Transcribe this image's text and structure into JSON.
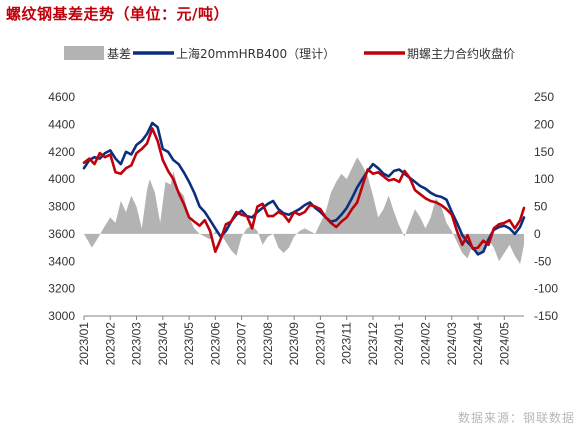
{
  "title": "螺纹钢基差走势（单位：元/吨）",
  "source": "数据来源：钢联数据",
  "chart_data": {
    "type": "line",
    "title": "螺纹钢基差走势（单位：元/吨）",
    "legend_position": "top",
    "grid": false,
    "left_axis": {
      "ylim": [
        3000,
        4600
      ],
      "ticks": [
        3000,
        3200,
        3400,
        3600,
        3800,
        4000,
        4200,
        4400,
        4600
      ]
    },
    "right_axis": {
      "ylim": [
        -150,
        250
      ],
      "ticks": [
        -150,
        -100,
        -50,
        0,
        50,
        100,
        150,
        200,
        250
      ]
    },
    "x_tick_labels": [
      "2023/01",
      "2023/02",
      "2023/03",
      "2023/04",
      "2023/05",
      "2023/06",
      "2023/07",
      "2023/08",
      "2023/09",
      "2023/10",
      "2023/11",
      "2023/12",
      "2024/01",
      "2024/02",
      "2024/03",
      "2024/04",
      "2024/05"
    ],
    "x_range_months": [
      0,
      16.75
    ],
    "series": [
      {
        "name": "基差",
        "axis": "right",
        "style": "area",
        "color": "#b3b3b3",
        "points": [
          [
            0.0,
            0
          ],
          [
            0.3,
            -25
          ],
          [
            0.5,
            -10
          ],
          [
            0.8,
            15
          ],
          [
            1.0,
            30
          ],
          [
            1.2,
            20
          ],
          [
            1.4,
            60
          ],
          [
            1.6,
            40
          ],
          [
            1.8,
            70
          ],
          [
            2.0,
            50
          ],
          [
            2.2,
            10
          ],
          [
            2.4,
            80
          ],
          [
            2.5,
            100
          ],
          [
            2.7,
            75
          ],
          [
            2.9,
            20
          ],
          [
            3.1,
            95
          ],
          [
            3.3,
            90
          ],
          [
            3.4,
            115
          ],
          [
            3.6,
            80
          ],
          [
            3.8,
            70
          ],
          [
            4.0,
            30
          ],
          [
            4.2,
            10
          ],
          [
            4.4,
            0
          ],
          [
            4.6,
            -5
          ],
          [
            4.8,
            -10
          ],
          [
            5.0,
            5
          ],
          [
            5.2,
            0
          ],
          [
            5.4,
            -15
          ],
          [
            5.6,
            -30
          ],
          [
            5.8,
            -40
          ],
          [
            6.0,
            -5
          ],
          [
            6.2,
            10
          ],
          [
            6.4,
            15
          ],
          [
            6.6,
            5
          ],
          [
            6.8,
            -20
          ],
          [
            7.0,
            -5
          ],
          [
            7.2,
            0
          ],
          [
            7.4,
            -25
          ],
          [
            7.6,
            -35
          ],
          [
            7.8,
            -25
          ],
          [
            8.0,
            -5
          ],
          [
            8.2,
            5
          ],
          [
            8.4,
            10
          ],
          [
            8.6,
            5
          ],
          [
            8.8,
            0
          ],
          [
            9.0,
            20
          ],
          [
            9.2,
            40
          ],
          [
            9.4,
            75
          ],
          [
            9.6,
            95
          ],
          [
            9.8,
            110
          ],
          [
            10.0,
            100
          ],
          [
            10.2,
            120
          ],
          [
            10.4,
            140
          ],
          [
            10.6,
            125
          ],
          [
            10.8,
            105
          ],
          [
            11.0,
            70
          ],
          [
            11.2,
            30
          ],
          [
            11.4,
            45
          ],
          [
            11.6,
            70
          ],
          [
            11.8,
            40
          ],
          [
            12.0,
            15
          ],
          [
            12.2,
            -5
          ],
          [
            12.4,
            20
          ],
          [
            12.6,
            45
          ],
          [
            12.8,
            30
          ],
          [
            13.0,
            10
          ],
          [
            13.2,
            30
          ],
          [
            13.4,
            65
          ],
          [
            13.6,
            50
          ],
          [
            13.8,
            20
          ],
          [
            14.0,
            5
          ],
          [
            14.2,
            -15
          ],
          [
            14.4,
            -35
          ],
          [
            14.6,
            -45
          ],
          [
            14.8,
            -20
          ],
          [
            15.0,
            -40
          ],
          [
            15.2,
            -30
          ],
          [
            15.4,
            -10
          ],
          [
            15.6,
            -25
          ],
          [
            15.8,
            -50
          ],
          [
            16.0,
            -35
          ],
          [
            16.2,
            -20
          ],
          [
            16.4,
            -40
          ],
          [
            16.6,
            -55
          ],
          [
            16.75,
            -20
          ]
        ]
      },
      {
        "name": "上海20mmHRB400（理计）",
        "axis": "left",
        "style": "line",
        "color": "#0b2f7f",
        "points": [
          [
            0.0,
            4080
          ],
          [
            0.2,
            4140
          ],
          [
            0.4,
            4160
          ],
          [
            0.6,
            4150
          ],
          [
            0.8,
            4190
          ],
          [
            1.0,
            4210
          ],
          [
            1.2,
            4150
          ],
          [
            1.4,
            4110
          ],
          [
            1.6,
            4200
          ],
          [
            1.8,
            4180
          ],
          [
            2.0,
            4250
          ],
          [
            2.2,
            4280
          ],
          [
            2.4,
            4330
          ],
          [
            2.6,
            4410
          ],
          [
            2.8,
            4380
          ],
          [
            3.0,
            4220
          ],
          [
            3.2,
            4200
          ],
          [
            3.4,
            4140
          ],
          [
            3.6,
            4110
          ],
          [
            3.8,
            4050
          ],
          [
            4.0,
            3980
          ],
          [
            4.2,
            3900
          ],
          [
            4.4,
            3800
          ],
          [
            4.6,
            3760
          ],
          [
            4.8,
            3700
          ],
          [
            5.0,
            3640
          ],
          [
            5.2,
            3580
          ],
          [
            5.4,
            3620
          ],
          [
            5.6,
            3690
          ],
          [
            5.8,
            3740
          ],
          [
            6.0,
            3770
          ],
          [
            6.2,
            3730
          ],
          [
            6.4,
            3720
          ],
          [
            6.6,
            3760
          ],
          [
            6.8,
            3790
          ],
          [
            7.0,
            3820
          ],
          [
            7.2,
            3840
          ],
          [
            7.4,
            3780
          ],
          [
            7.6,
            3750
          ],
          [
            7.8,
            3740
          ],
          [
            8.0,
            3760
          ],
          [
            8.2,
            3780
          ],
          [
            8.4,
            3810
          ],
          [
            8.6,
            3830
          ],
          [
            8.8,
            3790
          ],
          [
            9.0,
            3760
          ],
          [
            9.2,
            3720
          ],
          [
            9.4,
            3690
          ],
          [
            9.6,
            3700
          ],
          [
            9.8,
            3740
          ],
          [
            10.0,
            3790
          ],
          [
            10.2,
            3860
          ],
          [
            10.4,
            3940
          ],
          [
            10.6,
            4000
          ],
          [
            10.8,
            4060
          ],
          [
            11.0,
            4110
          ],
          [
            11.2,
            4080
          ],
          [
            11.4,
            4040
          ],
          [
            11.6,
            4020
          ],
          [
            11.8,
            4060
          ],
          [
            12.0,
            4070
          ],
          [
            12.2,
            4040
          ],
          [
            12.4,
            4010
          ],
          [
            12.6,
            3980
          ],
          [
            12.8,
            3950
          ],
          [
            13.0,
            3930
          ],
          [
            13.2,
            3900
          ],
          [
            13.4,
            3880
          ],
          [
            13.6,
            3870
          ],
          [
            13.8,
            3850
          ],
          [
            14.0,
            3760
          ],
          [
            14.2,
            3680
          ],
          [
            14.4,
            3590
          ],
          [
            14.6,
            3540
          ],
          [
            14.8,
            3500
          ],
          [
            15.0,
            3450
          ],
          [
            15.2,
            3470
          ],
          [
            15.4,
            3560
          ],
          [
            15.6,
            3630
          ],
          [
            15.8,
            3650
          ],
          [
            16.0,
            3660
          ],
          [
            16.2,
            3640
          ],
          [
            16.4,
            3600
          ],
          [
            16.6,
            3650
          ],
          [
            16.75,
            3720
          ]
        ]
      },
      {
        "name": "期螺主力合约收盘价",
        "axis": "left",
        "style": "line",
        "color": "#c0000b",
        "points": [
          [
            0.0,
            4120
          ],
          [
            0.2,
            4150
          ],
          [
            0.4,
            4110
          ],
          [
            0.6,
            4190
          ],
          [
            0.8,
            4160
          ],
          [
            1.0,
            4180
          ],
          [
            1.2,
            4050
          ],
          [
            1.4,
            4040
          ],
          [
            1.6,
            4080
          ],
          [
            1.8,
            4100
          ],
          [
            2.0,
            4190
          ],
          [
            2.2,
            4220
          ],
          [
            2.4,
            4260
          ],
          [
            2.6,
            4370
          ],
          [
            2.8,
            4280
          ],
          [
            3.0,
            4140
          ],
          [
            3.2,
            4060
          ],
          [
            3.4,
            4000
          ],
          [
            3.6,
            3900
          ],
          [
            3.8,
            3820
          ],
          [
            4.0,
            3720
          ],
          [
            4.2,
            3690
          ],
          [
            4.4,
            3660
          ],
          [
            4.6,
            3700
          ],
          [
            4.8,
            3620
          ],
          [
            5.0,
            3470
          ],
          [
            5.2,
            3560
          ],
          [
            5.4,
            3670
          ],
          [
            5.6,
            3690
          ],
          [
            5.8,
            3760
          ],
          [
            6.0,
            3740
          ],
          [
            6.2,
            3730
          ],
          [
            6.4,
            3640
          ],
          [
            6.6,
            3800
          ],
          [
            6.8,
            3820
          ],
          [
            7.0,
            3730
          ],
          [
            7.2,
            3730
          ],
          [
            7.4,
            3760
          ],
          [
            7.6,
            3740
          ],
          [
            7.8,
            3690
          ],
          [
            8.0,
            3760
          ],
          [
            8.2,
            3740
          ],
          [
            8.4,
            3760
          ],
          [
            8.6,
            3810
          ],
          [
            8.8,
            3800
          ],
          [
            9.0,
            3780
          ],
          [
            9.2,
            3720
          ],
          [
            9.4,
            3680
          ],
          [
            9.6,
            3650
          ],
          [
            9.8,
            3690
          ],
          [
            10.0,
            3720
          ],
          [
            10.2,
            3780
          ],
          [
            10.4,
            3830
          ],
          [
            10.6,
            3950
          ],
          [
            10.8,
            4070
          ],
          [
            11.0,
            4040
          ],
          [
            11.2,
            4050
          ],
          [
            11.4,
            4020
          ],
          [
            11.6,
            3990
          ],
          [
            11.8,
            4000
          ],
          [
            12.0,
            3980
          ],
          [
            12.2,
            4060
          ],
          [
            12.4,
            4010
          ],
          [
            12.6,
            3920
          ],
          [
            12.8,
            3890
          ],
          [
            13.0,
            3860
          ],
          [
            13.2,
            3840
          ],
          [
            13.4,
            3830
          ],
          [
            13.6,
            3810
          ],
          [
            13.8,
            3780
          ],
          [
            14.0,
            3740
          ],
          [
            14.2,
            3620
          ],
          [
            14.4,
            3520
          ],
          [
            14.6,
            3590
          ],
          [
            14.8,
            3490
          ],
          [
            15.0,
            3500
          ],
          [
            15.2,
            3550
          ],
          [
            15.4,
            3520
          ],
          [
            15.6,
            3640
          ],
          [
            15.8,
            3670
          ],
          [
            16.0,
            3680
          ],
          [
            16.2,
            3700
          ],
          [
            16.4,
            3640
          ],
          [
            16.6,
            3700
          ],
          [
            16.75,
            3790
          ]
        ]
      }
    ]
  }
}
